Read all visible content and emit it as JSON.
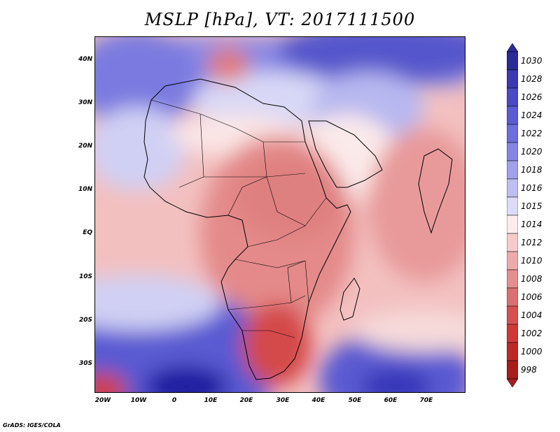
{
  "title": "MSLP [hPa], VT: 2017111500",
  "credit": "GrADS: IGES/COLA",
  "lat_ticks": [
    "40N",
    "30N",
    "20N",
    "10N",
    "EQ",
    "10S",
    "20S",
    "30S"
  ],
  "lon_ticks": [
    "20W",
    "10W",
    "0",
    "10E",
    "20E",
    "30E",
    "40E",
    "50E",
    "60E",
    "70E"
  ],
  "colorbar": {
    "levels": [
      "1030",
      "1028",
      "1026",
      "1024",
      "1022",
      "1020",
      "1018",
      "1016",
      "1015",
      "1014",
      "1012",
      "1010",
      "1008",
      "1006",
      "1004",
      "1002",
      "1000",
      "998"
    ],
    "colors": [
      "#2a2a9a",
      "#3a3ab5",
      "#4a4ac8",
      "#5b5bd6",
      "#6e6ee0",
      "#8585e6",
      "#a0a0ec",
      "#bebef2",
      "#dcdcf8",
      "#fcecec",
      "#f6caca",
      "#eeaaaa",
      "#e48e8e",
      "#dc7070",
      "#d85050",
      "#d03838",
      "#c02828",
      "#a81c1c"
    ]
  },
  "colors": {
    "land_border": "#000000",
    "high_deep": "#1c1ca0",
    "high": "#6e6ee0",
    "neutral": "#fbeaea",
    "low": "#e89090",
    "low_deep": "#c83030"
  }
}
